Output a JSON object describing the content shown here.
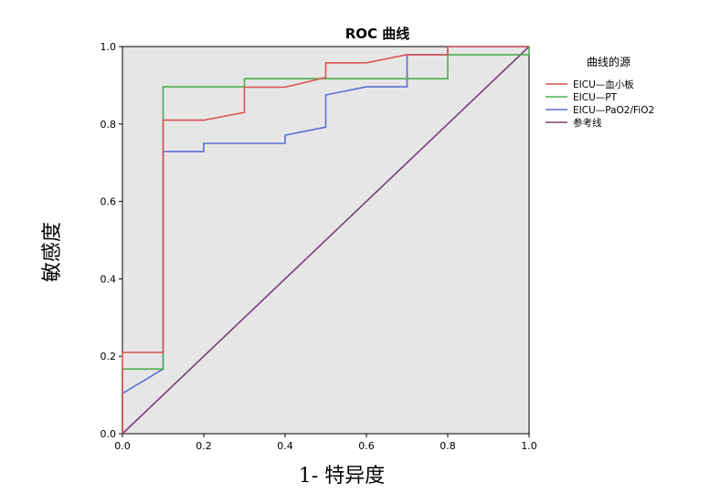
{
  "chart_data": {
    "type": "line",
    "title": "ROC 曲线",
    "xlabel": "1- 特异度",
    "ylabel": "敏感度",
    "xlim": [
      0,
      1
    ],
    "ylim": [
      0,
      1
    ],
    "x_ticks": [
      "0.0",
      "0.2",
      "0.4",
      "0.6",
      "0.8",
      "1.0"
    ],
    "y_ticks": [
      "0.0",
      "0.2",
      "0.4",
      "0.6",
      "0.8",
      "1.0"
    ],
    "grid": false,
    "legend_title": "曲线的源",
    "legend_position": "right",
    "series": [
      {
        "name": "EICU—血小板",
        "color": "#d9534f",
        "points": [
          [
            0,
            0
          ],
          [
            0,
            0.21
          ],
          [
            0.1,
            0.21
          ],
          [
            0.1,
            0.81
          ],
          [
            0.2,
            0.81
          ],
          [
            0.3,
            0.83
          ],
          [
            0.3,
            0.895
          ],
          [
            0.4,
            0.895
          ],
          [
            0.5,
            0.92
          ],
          [
            0.5,
            0.958
          ],
          [
            0.6,
            0.958
          ],
          [
            0.7,
            0.979
          ],
          [
            0.8,
            0.979
          ],
          [
            0.8,
            1.0
          ],
          [
            1.0,
            1.0
          ]
        ]
      },
      {
        "name": "EICU—PT",
        "color": "#4caf50",
        "points": [
          [
            0,
            0
          ],
          [
            0,
            0.167
          ],
          [
            0.1,
            0.167
          ],
          [
            0.1,
            0.896
          ],
          [
            0.3,
            0.896
          ],
          [
            0.3,
            0.917
          ],
          [
            0.8,
            0.917
          ],
          [
            0.8,
            0.979
          ],
          [
            1.0,
            0.979
          ],
          [
            1.0,
            1.0
          ]
        ]
      },
      {
        "name": "EICU—PaO2/FiO2",
        "color": "#5b6fd6",
        "points": [
          [
            0,
            0
          ],
          [
            0,
            0.104
          ],
          [
            0.1,
            0.167
          ],
          [
            0.1,
            0.729
          ],
          [
            0.2,
            0.729
          ],
          [
            0.2,
            0.75
          ],
          [
            0.4,
            0.75
          ],
          [
            0.4,
            0.771
          ],
          [
            0.5,
            0.792
          ],
          [
            0.5,
            0.875
          ],
          [
            0.6,
            0.896
          ],
          [
            0.7,
            0.896
          ],
          [
            0.7,
            0.979
          ],
          [
            0.8,
            0.979
          ],
          [
            0.8,
            1.0
          ],
          [
            1.0,
            1.0
          ]
        ]
      },
      {
        "name": "参考线",
        "color": "#7b3f7a",
        "points": [
          [
            0,
            0
          ],
          [
            1,
            1
          ]
        ]
      }
    ]
  },
  "colors": {
    "plot_background": "#e6e6e6",
    "axis": "#000000"
  }
}
